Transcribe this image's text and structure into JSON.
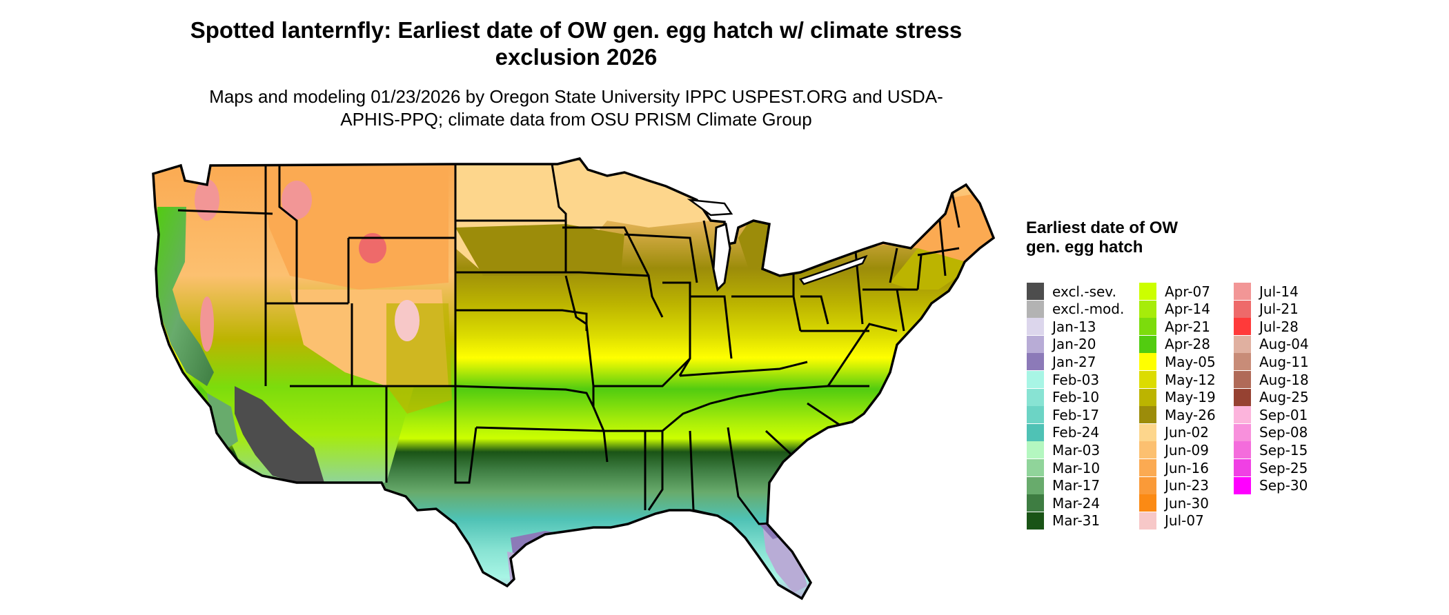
{
  "map": {
    "title": "Spotted lanternfly: Earliest date of OW gen. egg hatch w/ climate stress exclusion 2026",
    "subtitle": "Maps and modeling 01/23/2026 by Oregon State University IPPC USPEST.ORG and USDA-APHIS-PPQ; climate data from OSU PRISM Climate Group",
    "region": "Contiguous United States",
    "legend_title": "Earliest date of OW gen. egg hatch"
  },
  "legend": {
    "items": [
      {
        "label": "excl.-sev.",
        "color": "#4d4d4d"
      },
      {
        "label": "excl.-mod.",
        "color": "#b3b3b3"
      },
      {
        "label": "Jan-13",
        "color": "#dcd6ec"
      },
      {
        "label": "Jan-20",
        "color": "#b8acd6"
      },
      {
        "label": "Jan-27",
        "color": "#8c7ab8"
      },
      {
        "label": "Feb-03",
        "color": "#a8f5e5"
      },
      {
        "label": "Feb-10",
        "color": "#88e3d3"
      },
      {
        "label": "Feb-17",
        "color": "#6cd4c5"
      },
      {
        "label": "Feb-24",
        "color": "#4fc2b5"
      },
      {
        "label": "Mar-03",
        "color": "#b4f7c0"
      },
      {
        "label": "Mar-10",
        "color": "#90d49a"
      },
      {
        "label": "Mar-17",
        "color": "#68ab6c"
      },
      {
        "label": "Mar-24",
        "color": "#3e7d42"
      },
      {
        "label": "Mar-31",
        "color": "#1a5416"
      },
      {
        "label": "Apr-07",
        "color": "#ccff00"
      },
      {
        "label": "Apr-14",
        "color": "#a6ec0a"
      },
      {
        "label": "Apr-21",
        "color": "#7cdc0c"
      },
      {
        "label": "Apr-28",
        "color": "#52cc10"
      },
      {
        "label": "May-05",
        "color": "#ffff00"
      },
      {
        "label": "May-12",
        "color": "#dcdc00"
      },
      {
        "label": "May-19",
        "color": "#bcb400"
      },
      {
        "label": "May-26",
        "color": "#9c8c0a"
      },
      {
        "label": "Jun-02",
        "color": "#fdd68c"
      },
      {
        "label": "Jun-09",
        "color": "#fcc070"
      },
      {
        "label": "Jun-16",
        "color": "#fbaa52"
      },
      {
        "label": "Jun-23",
        "color": "#fa9a38"
      },
      {
        "label": "Jun-30",
        "color": "#fb8a14"
      },
      {
        "label": "Jul-07",
        "color": "#f7c8c8"
      },
      {
        "label": "Jul-14",
        "color": "#f29696"
      },
      {
        "label": "Jul-21",
        "color": "#ee6a6a"
      },
      {
        "label": "Jul-28",
        "color": "#ff3a3a"
      },
      {
        "label": "Aug-04",
        "color": "#e0b0a0"
      },
      {
        "label": "Aug-11",
        "color": "#c88c78"
      },
      {
        "label": "Aug-18",
        "color": "#b06a58"
      },
      {
        "label": "Aug-25",
        "color": "#964232"
      },
      {
        "label": "Sep-01",
        "color": "#fcb4dc"
      },
      {
        "label": "Sep-08",
        "color": "#f890dc"
      },
      {
        "label": "Sep-15",
        "color": "#f46cdc"
      },
      {
        "label": "Sep-25",
        "color": "#f040e4"
      },
      {
        "label": "Sep-30",
        "color": "#ff00ff"
      }
    ]
  }
}
